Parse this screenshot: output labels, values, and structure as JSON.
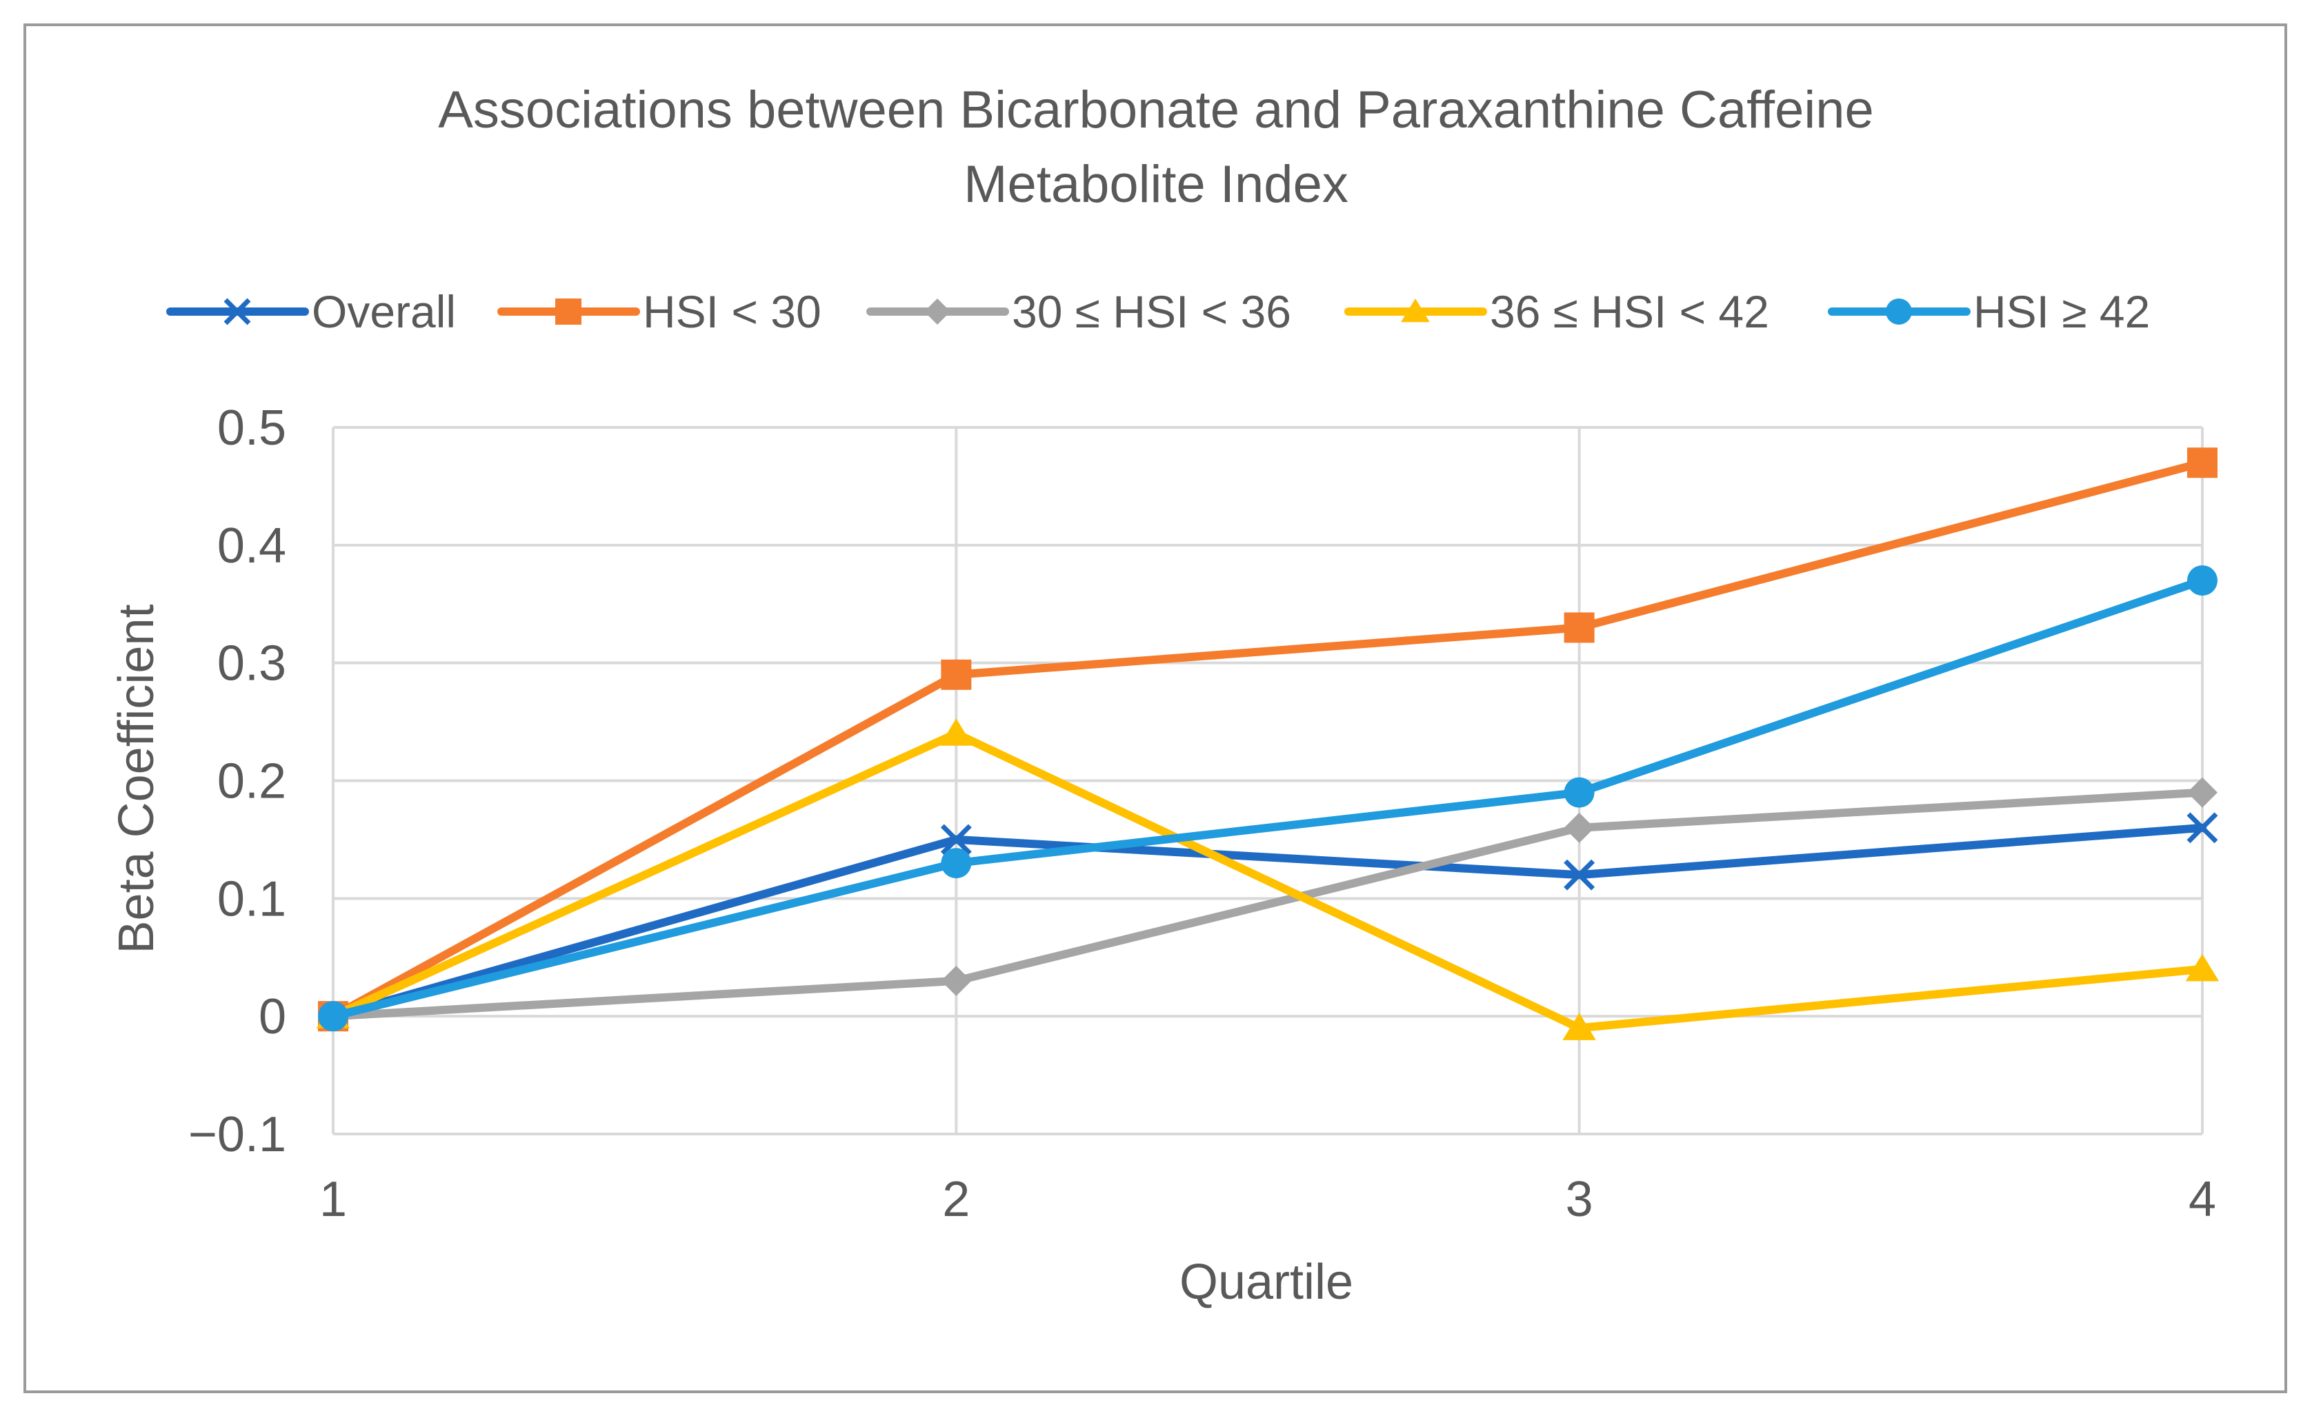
{
  "chart_data": {
    "type": "line",
    "title": "Associations between Bicarbonate and Paraxanthine Caffeine Metabolite Index",
    "title_lines": [
      "Associations between Bicarbonate and Paraxanthine Caffeine",
      "Metabolite Index"
    ],
    "xlabel": "Quartile",
    "ylabel": "Beta Coefficient",
    "categories": [
      "1",
      "2",
      "3",
      "4"
    ],
    "x": [
      1,
      2,
      3,
      4
    ],
    "xlim": [
      1,
      4
    ],
    "ylim": [
      -0.1,
      0.5
    ],
    "y_ticks": [
      -0.1,
      0,
      0.1,
      0.2,
      0.3,
      0.4,
      0.5
    ],
    "y_tick_labels": [
      "−0.1",
      "0",
      "0.1",
      "0.2",
      "0.3",
      "0.4",
      "0.5"
    ],
    "grid": true,
    "legend_position": "top",
    "series": [
      {
        "name": "Overall",
        "color": "#1f6bc4",
        "marker": "x",
        "values": [
          0,
          0.15,
          0.12,
          0.16
        ]
      },
      {
        "name": "HSI < 30",
        "color": "#f47c2c",
        "marker": "square",
        "values": [
          0,
          0.29,
          0.33,
          0.47
        ]
      },
      {
        "name": "30 ≤ HSI < 36",
        "color": "#a5a5a5",
        "marker": "diamond",
        "values": [
          0,
          0.03,
          0.16,
          0.19
        ]
      },
      {
        "name": "36 ≤ HSI < 42",
        "color": "#ffc000",
        "marker": "triangle",
        "values": [
          0,
          0.24,
          -0.01,
          0.04
        ]
      },
      {
        "name": "HSI ≥ 42",
        "color": "#1f9bde",
        "marker": "circle",
        "values": [
          0,
          0.13,
          0.19,
          0.37
        ]
      }
    ]
  }
}
